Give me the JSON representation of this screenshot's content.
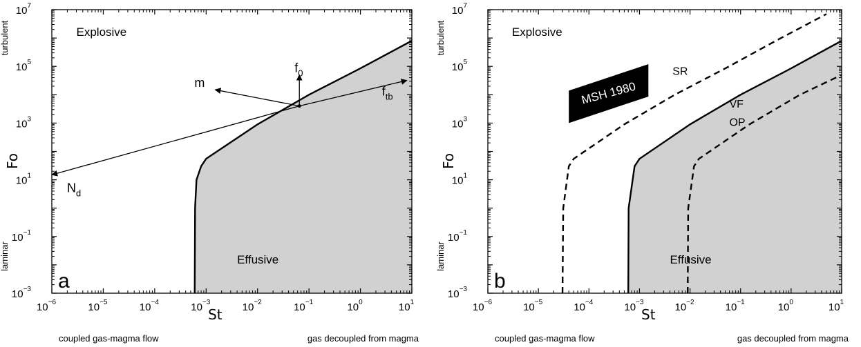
{
  "chart_data": [
    {
      "type": "line",
      "panel_letter": "a",
      "xlabel": "St",
      "ylabel": "Fo",
      "x_scale": "log",
      "y_scale": "log",
      "xlim": [
        1e-06,
        10
      ],
      "ylim": [
        0.001,
        10000000.0
      ],
      "x_ticks": [
        {
          "base": "10",
          "exp": "−6"
        },
        {
          "base": "10",
          "exp": "−5"
        },
        {
          "base": "10",
          "exp": "−4"
        },
        {
          "base": "10",
          "exp": "−3"
        },
        {
          "base": "10",
          "exp": "−2"
        },
        {
          "base": "10",
          "exp": "−1"
        },
        {
          "base": "10",
          "exp": "0"
        },
        {
          "base": "10",
          "exp": "1"
        }
      ],
      "y_ticks": [
        {
          "base": "10",
          "exp": "−3"
        },
        {
          "base": "10",
          "exp": "−1"
        },
        {
          "base": "10",
          "exp": "1"
        },
        {
          "base": "10",
          "exp": "3"
        },
        {
          "base": "10",
          "exp": "5"
        },
        {
          "base": "10",
          "exp": "7"
        }
      ],
      "y_side_labels": {
        "top": "turbulent",
        "bottom": "laminar"
      },
      "x_side_labels": {
        "left": "coupled gas-magma flow",
        "right": "gas decoupled from magma"
      },
      "regions": [
        {
          "label": "Explosive",
          "x": 3e-06,
          "y": 1200000.0
        },
        {
          "label": "Effusive",
          "x": 0.004,
          "y": 0.011
        }
      ],
      "series": [
        {
          "style": "solid",
          "shaded_below": true,
          "x_asymptote": 0.0006,
          "slope_x": 10,
          "points": [
            [
              0.0006,
              0.001
            ],
            [
              0.00061,
              1
            ],
            [
              0.00065,
              10
            ],
            [
              0.0008,
              30
            ],
            [
              0.001,
              55
            ],
            [
              0.01,
              900
            ],
            [
              0.1,
              10000
            ],
            [
              1,
              85000
            ],
            [
              10,
              800000
            ]
          ]
        }
      ],
      "vectors": [
        {
          "label": "f",
          "sub": "0",
          "from": [
            0.065,
            4000
          ],
          "to": [
            0.065,
            50000
          ]
        },
        {
          "label": "m",
          "sub": "",
          "from": [
            0.065,
            4000
          ],
          "to": [
            0.0015,
            15000
          ]
        },
        {
          "label": "f",
          "sub": "tb",
          "from": [
            0.065,
            4000
          ],
          "to": [
            8,
            32000
          ]
        },
        {
          "label": "N",
          "sub": "d",
          "from": [
            0.065,
            4000
          ],
          "to": [
            1e-06,
            15
          ]
        }
      ]
    },
    {
      "type": "line",
      "panel_letter": "b",
      "xlabel": "St",
      "ylabel": "Fo",
      "x_scale": "log",
      "y_scale": "log",
      "xlim": [
        1e-06,
        10
      ],
      "ylim": [
        0.001,
        10000000.0
      ],
      "x_ticks": [
        {
          "base": "10",
          "exp": "−6"
        },
        {
          "base": "10",
          "exp": "−5"
        },
        {
          "base": "10",
          "exp": "−4"
        },
        {
          "base": "10",
          "exp": "−3"
        },
        {
          "base": "10",
          "exp": "−2"
        },
        {
          "base": "10",
          "exp": "−1"
        },
        {
          "base": "10",
          "exp": "0"
        },
        {
          "base": "10",
          "exp": "1"
        }
      ],
      "y_ticks": [
        {
          "base": "10",
          "exp": "−3"
        },
        {
          "base": "10",
          "exp": "−1"
        },
        {
          "base": "10",
          "exp": "1"
        },
        {
          "base": "10",
          "exp": "3"
        },
        {
          "base": "10",
          "exp": "5"
        },
        {
          "base": "10",
          "exp": "7"
        }
      ],
      "y_side_labels": {
        "top": "turbulent",
        "bottom": "laminar"
      },
      "x_side_labels": {
        "left": "coupled gas-magma flow",
        "right": "gas decoupled from magma"
      },
      "regions": [
        {
          "label": "Explosive",
          "x": 3e-06,
          "y": 1200000.0
        },
        {
          "label": "Effusive",
          "x": 0.004,
          "y": 0.011
        }
      ],
      "box_label": {
        "text": "MSH 1980",
        "x_range": [
          4e-05,
          0.0015
        ],
        "y_range": [
          1000,
          120000
        ]
      },
      "series": [
        {
          "name": "SR",
          "style": "dashed",
          "shaded_below": false,
          "x_asymptote": 3e-05,
          "slope_x": 10,
          "points": [
            [
              3e-05,
              0.001
            ],
            [
              3.1e-05,
              1
            ],
            [
              4e-05,
              30
            ],
            [
              5e-05,
              55
            ],
            [
              0.0005,
              900
            ],
            [
              0.005,
              10000
            ],
            [
              0.05,
              85000
            ],
            [
              0.5,
              800000
            ],
            [
              5,
              7000000
            ]
          ]
        },
        {
          "name": "VF",
          "style": "solid",
          "shaded_below": true,
          "x_asymptote": 0.0006,
          "slope_x": 10,
          "points": [
            [
              0.0006,
              0.001
            ],
            [
              0.00061,
              1
            ],
            [
              0.0008,
              30
            ],
            [
              0.001,
              55
            ],
            [
              0.01,
              900
            ],
            [
              0.1,
              10000
            ],
            [
              1,
              85000
            ],
            [
              10,
              800000
            ]
          ]
        },
        {
          "name": "OP",
          "style": "dashed",
          "shaded_below": false,
          "x_asymptote": 0.009,
          "slope_x": 10,
          "points": [
            [
              0.009,
              0.001
            ],
            [
              0.0092,
              1
            ],
            [
              0.012,
              30
            ],
            [
              0.015,
              55
            ],
            [
              0.15,
              900
            ],
            [
              1.5,
              10000
            ],
            [
              10,
              50000
            ]
          ]
        }
      ],
      "curve_labels": [
        {
          "text": "SR",
          "x": 0.0045,
          "y": 50000
        },
        {
          "text": "VF",
          "x": 0.06,
          "y": 3500
        },
        {
          "text": "OP",
          "x": 0.06,
          "y": 800
        }
      ]
    }
  ]
}
